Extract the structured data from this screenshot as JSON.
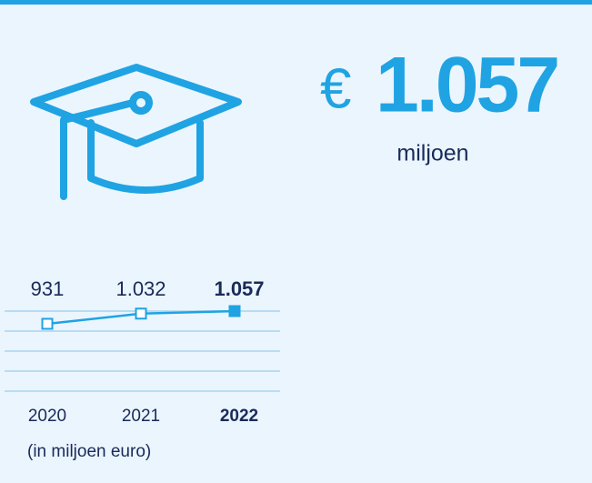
{
  "headline": {
    "currency": "€",
    "value": "1.057",
    "unit": "miljoen"
  },
  "chart_data": {
    "type": "line",
    "categories": [
      "2020",
      "2021",
      "2022"
    ],
    "values": [
      931,
      1032,
      1057
    ],
    "value_labels": [
      "931",
      "1.032",
      "1.057"
    ],
    "color": "#1fa3e3",
    "note": "(in miljoen euro)"
  }
}
